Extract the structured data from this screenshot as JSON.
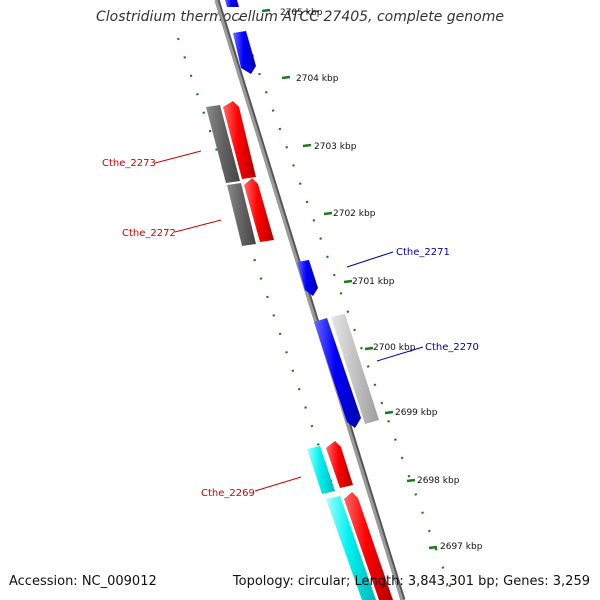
{
  "header": {
    "title": "Clostridium thermocellum ATCC 27405, complete genome"
  },
  "footer": {
    "accession": "Accession: NC_009012",
    "summary": "Topology: circular; Length: 3,843,301 bp; Genes: 3,259"
  },
  "map": {
    "ticks": [
      "2705 kbp",
      "2704 kbp",
      "2703 kbp",
      "2702 kbp",
      "2701 kbp",
      "2700 kbp",
      "2699 kbp",
      "2698 kbp",
      "2697 kbp"
    ],
    "gene_labels": {
      "cthe_2273": "Cthe_2273",
      "cthe_2272": "Cthe_2272",
      "cthe_2271": "Cthe_2271",
      "cthe_2270": "Cthe_2270",
      "cthe_2269": "Cthe_2269"
    }
  },
  "colors": {
    "forward_cds": "#ff0000",
    "reverse_cds": "#0000ff",
    "rna": "#00ffff",
    "grey_gene": "#6a6a6a",
    "light_grey_gene": "#c8c8c8",
    "backbone": "#888888",
    "gc_ticks": "#1a7a1a",
    "left_label": "#cc0000",
    "right_label": "#0000aa"
  }
}
